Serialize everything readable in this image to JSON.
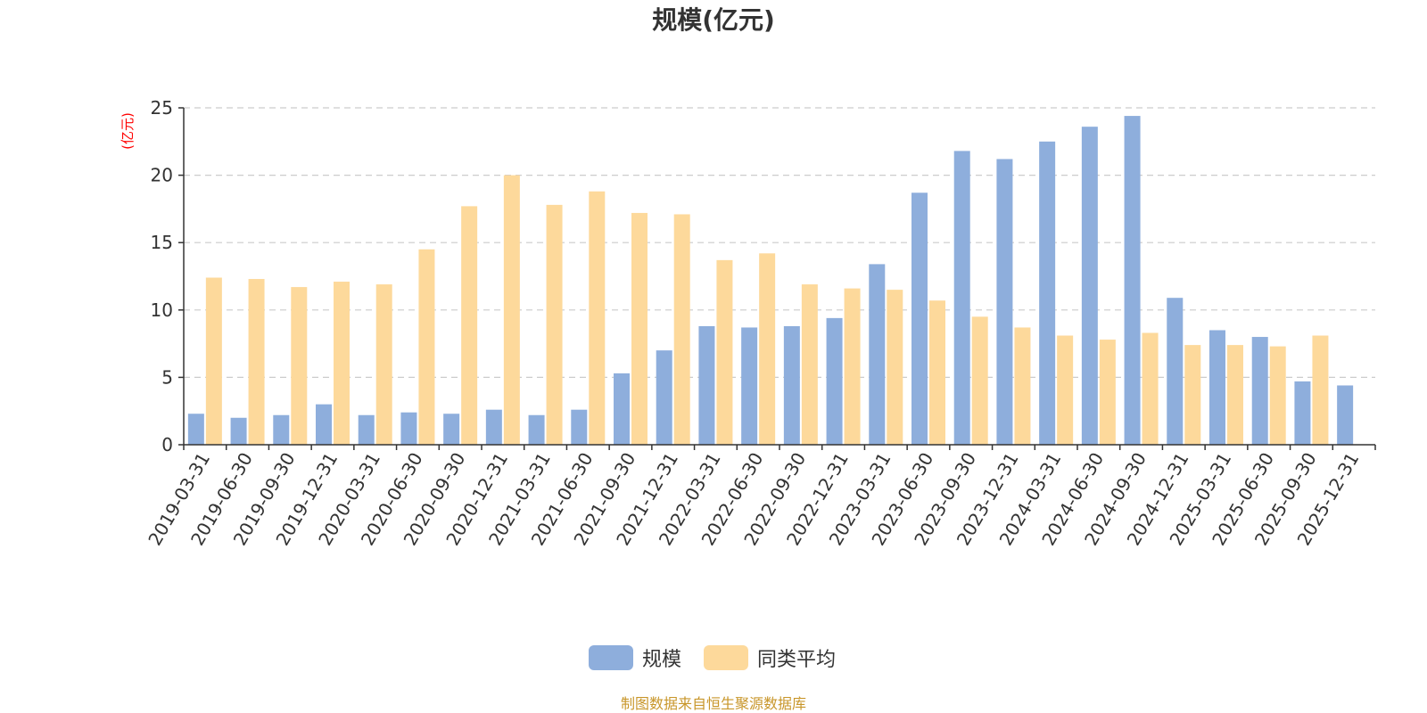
{
  "chart_data": {
    "type": "bar",
    "title": "规模(亿元)",
    "ylabel": "(亿元)",
    "ylim": [
      0,
      25
    ],
    "yticks": [
      0,
      5,
      10,
      15,
      20,
      25
    ],
    "grid": true,
    "legend_position": "bottom-center",
    "categories": [
      "2019-03-31",
      "2019-06-30",
      "2019-09-30",
      "2019-12-31",
      "2020-03-31",
      "2020-06-30",
      "2020-09-30",
      "2020-12-31",
      "2021-03-31",
      "2021-06-30",
      "2021-09-30",
      "2021-12-31",
      "2022-03-31",
      "2022-06-30",
      "2022-09-30",
      "2022-12-31",
      "2023-03-31",
      "2023-06-30",
      "2023-09-30",
      "2023-12-31",
      "2024-03-31",
      "2024-06-30",
      "2024-09-30",
      "2024-12-31",
      "2025-03-31",
      "2025-06-30",
      "2025-09-30",
      "2025-12-31"
    ],
    "series": [
      {
        "name": "规模",
        "color": "#8eaedc",
        "values": [
          2.3,
          2.0,
          2.2,
          3.0,
          2.2,
          2.4,
          2.3,
          2.6,
          2.2,
          2.6,
          5.3,
          7.0,
          8.8,
          8.7,
          8.8,
          9.4,
          13.4,
          18.7,
          21.8,
          21.2,
          22.5,
          23.6,
          24.4,
          10.9,
          8.5,
          8.0,
          4.7,
          4.4
        ]
      },
      {
        "name": "同类平均",
        "color": "#fdd99b",
        "values": [
          12.4,
          12.3,
          11.7,
          12.1,
          11.9,
          14.5,
          17.7,
          20.0,
          17.8,
          18.8,
          17.2,
          17.1,
          13.7,
          14.2,
          11.9,
          11.6,
          11.5,
          10.7,
          9.5,
          8.7,
          8.1,
          7.8,
          8.3,
          7.4,
          7.4,
          7.3,
          8.1,
          null
        ]
      }
    ]
  },
  "source": {
    "text": "制图数据来自恒生聚源数据库",
    "color": "#c8962a"
  }
}
